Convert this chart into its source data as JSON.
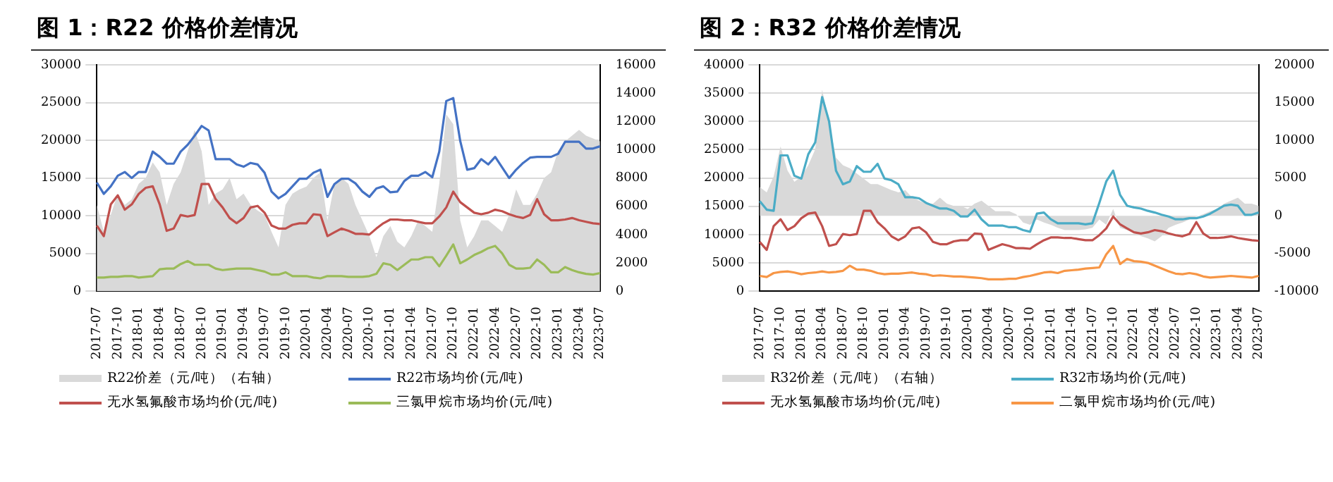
{
  "chart_data": [
    {
      "type": "line",
      "title": "图 1：R22 价格价差情况",
      "marker": "none",
      "grid": "y",
      "legend": "bottom",
      "categories": [
        "2017-07",
        null,
        null,
        "2017-10",
        null,
        null,
        "2018-01",
        null,
        null,
        "2018-04",
        null,
        null,
        "2018-07",
        null,
        null,
        "2018-10",
        null,
        null,
        "2019-01",
        null,
        null,
        "2019-04",
        null,
        null,
        "2019-07",
        null,
        null,
        "2019-10",
        null,
        null,
        "2020-01",
        null,
        null,
        "2020-04",
        null,
        null,
        "2020-07",
        null,
        null,
        "2020-10",
        null,
        null,
        "2021-01",
        null,
        null,
        "2021-04",
        null,
        null,
        "2021-07",
        null,
        null,
        "2021-10",
        null,
        null,
        "2022-01",
        null,
        null,
        "2022-04",
        null,
        null,
        "2022-07",
        null,
        null,
        "2022-10",
        null,
        null,
        "2023-01",
        null,
        null,
        "2023-04",
        null,
        null,
        "2023-07"
      ],
      "ylim": [
        0,
        30000
      ],
      "yticks": [
        0,
        5000,
        10000,
        15000,
        20000,
        25000,
        30000
      ],
      "y2lim": [
        0,
        16000
      ],
      "y2ticks": [
        0,
        2000,
        4000,
        6000,
        8000,
        10000,
        12000,
        14000,
        16000
      ],
      "series": [
        {
          "name": "R22价差（元/吨）（右轴）",
          "type": "area",
          "axis": "y2",
          "color": "#d9d9d9",
          "values": [
            6100,
            4200,
            5400,
            6900,
            6100,
            6500,
            7600,
            8000,
            9100,
            8400,
            6100,
            7600,
            8400,
            9900,
            11400,
            9900,
            6100,
            6900,
            7200,
            8000,
            6500,
            6900,
            6100,
            5700,
            5400,
            4200,
            3100,
            6100,
            6900,
            7200,
            7400,
            8000,
            8400,
            5000,
            7600,
            8000,
            7600,
            6100,
            5000,
            3900,
            2400,
            3900,
            4600,
            3500,
            3100,
            3900,
            5000,
            4600,
            4200,
            7600,
            12500,
            11800,
            5000,
            3100,
            3900,
            5000,
            5000,
            4600,
            4200,
            5400,
            7200,
            6100,
            6100,
            6900,
            8000,
            8400,
            9900,
            10600,
            11000,
            11400,
            11000,
            10800,
            10600
          ]
        },
        {
          "name": "R22市场均价(元/吨)",
          "color": "#4472c4",
          "values": [
            14400,
            12900,
            13900,
            15300,
            15800,
            15000,
            15800,
            15800,
            18500,
            17800,
            16900,
            16900,
            18500,
            19400,
            20600,
            21900,
            21300,
            17500,
            17500,
            17500,
            16800,
            16500,
            17000,
            16800,
            15700,
            13200,
            12300,
            12900,
            13900,
            14900,
            14900,
            15700,
            16100,
            12500,
            14200,
            14900,
            14900,
            14300,
            13200,
            12500,
            13600,
            13900,
            13100,
            13200,
            14600,
            15300,
            15300,
            15800,
            15100,
            18500,
            25200,
            25600,
            19900,
            16100,
            16300,
            17500,
            16800,
            17800,
            16400,
            15000,
            16100,
            17000,
            17700,
            17800,
            17800,
            17800,
            18200,
            19800,
            19800,
            19800,
            18900,
            18900,
            19200
          ]
        },
        {
          "name": "无水氢氟酸市场均价(元/吨)",
          "color": "#c0504d",
          "values": [
            8700,
            7300,
            11500,
            12700,
            10800,
            11500,
            12900,
            13700,
            13900,
            11500,
            8000,
            8300,
            10100,
            9900,
            10100,
            14200,
            14200,
            12200,
            11100,
            9700,
            9000,
            9700,
            11100,
            11300,
            10400,
            8700,
            8300,
            8300,
            8800,
            9000,
            9000,
            10200,
            10100,
            7300,
            7800,
            8300,
            8000,
            7600,
            7600,
            7500,
            8300,
            9000,
            9500,
            9500,
            9400,
            9400,
            9200,
            9000,
            9000,
            9900,
            11100,
            13200,
            11800,
            11100,
            10400,
            10200,
            10400,
            10800,
            10600,
            10200,
            9900,
            9700,
            10100,
            12200,
            10200,
            9400,
            9400,
            9500,
            9700,
            9400,
            9200,
            9000,
            8900
          ]
        },
        {
          "name": "三氯甲烷市场均价(元/吨)",
          "color": "#9bbb59",
          "values": [
            1800,
            1800,
            1900,
            1900,
            2000,
            2000,
            1800,
            1900,
            2000,
            2900,
            3000,
            3000,
            3600,
            4000,
            3500,
            3500,
            3500,
            3000,
            2800,
            2900,
            3000,
            3000,
            3000,
            2800,
            2600,
            2200,
            2200,
            2500,
            2000,
            2000,
            2000,
            1800,
            1700,
            2000,
            2000,
            2000,
            1900,
            1900,
            1900,
            2000,
            2300,
            3700,
            3500,
            2800,
            3500,
            4200,
            4200,
            4500,
            4500,
            3300,
            4700,
            6200,
            3700,
            4200,
            4800,
            5200,
            5700,
            6000,
            5000,
            3500,
            3000,
            3000,
            3100,
            4200,
            3500,
            2500,
            2500,
            3200,
            2800,
            2500,
            2300,
            2200,
            2400
          ]
        }
      ]
    },
    {
      "type": "line",
      "title": "图 2：R32 价格价差情况",
      "marker": "none",
      "grid": "y",
      "legend": "bottom",
      "categories": [
        "2017-07",
        null,
        null,
        "2017-10",
        null,
        null,
        "2018-01",
        null,
        null,
        "2018-04",
        null,
        null,
        "2018-07",
        null,
        null,
        "2018-10",
        null,
        null,
        "2019-01",
        null,
        null,
        "2019-04",
        null,
        null,
        "2019-07",
        null,
        null,
        "2019-10",
        null,
        null,
        "2020-01",
        null,
        null,
        "2020-04",
        null,
        null,
        "2020-07",
        null,
        null,
        "2020-10",
        null,
        null,
        "2021-01",
        null,
        null,
        "2021-04",
        null,
        null,
        "2021-07",
        null,
        null,
        "2021-10",
        null,
        null,
        "2022-01",
        null,
        null,
        "2022-04",
        null,
        null,
        "2022-07",
        null,
        null,
        "2022-10",
        null,
        null,
        "2023-01",
        null,
        null,
        "2023-04",
        null,
        null,
        "2023-07"
      ],
      "ylim": [
        0,
        40000
      ],
      "yticks": [
        0,
        5000,
        10000,
        15000,
        20000,
        25000,
        30000,
        35000,
        40000
      ],
      "y2lim": [
        -10000,
        20000
      ],
      "y2ticks": [
        -10000,
        -5000,
        0,
        5000,
        10000,
        15000,
        20000
      ],
      "series": [
        {
          "name": "R32价差（元/吨）（右轴）",
          "type": "area",
          "axis": "y2",
          "color": "#d9d9d9",
          "values": [
            3800,
            3100,
            5200,
            9200,
            6000,
            4500,
            5200,
            6700,
            8800,
            16700,
            12400,
            7700,
            6700,
            6300,
            5600,
            4900,
            4200,
            4200,
            3800,
            3400,
            3100,
            3400,
            2400,
            2000,
            1600,
            1600,
            2400,
            1600,
            1300,
            1300,
            900,
            1600,
            2000,
            1300,
            600,
            600,
            600,
            200,
            -900,
            -1200,
            -500,
            -900,
            -1200,
            -1600,
            -1900,
            -1900,
            -1900,
            -1800,
            -1600,
            -500,
            -1200,
            900,
            -1600,
            -1900,
            -2300,
            -2700,
            -3000,
            -3400,
            -2700,
            -1600,
            -1200,
            -900,
            -500,
            -100,
            200,
            600,
            900,
            1600,
            2000,
            2400,
            1600,
            1600,
            1300
          ]
        },
        {
          "name": "R32市场均价(元/吨)",
          "color": "#4bacc6",
          "values": [
            15900,
            14400,
            14200,
            24000,
            24000,
            20400,
            19900,
            24200,
            26300,
            34300,
            30000,
            21300,
            18900,
            19400,
            22100,
            21100,
            21100,
            22500,
            19900,
            19600,
            18900,
            16600,
            16600,
            16400,
            15600,
            15100,
            14600,
            14600,
            14200,
            13200,
            13200,
            14400,
            12700,
            11600,
            11600,
            11600,
            11300,
            11300,
            10800,
            10500,
            13700,
            13900,
            12700,
            12000,
            12000,
            12000,
            12000,
            11800,
            12000,
            15600,
            19400,
            21300,
            17000,
            15100,
            14800,
            14600,
            14200,
            13900,
            13500,
            13200,
            12700,
            12700,
            12900,
            12900,
            13200,
            13700,
            14400,
            15100,
            15300,
            15100,
            13500,
            13500,
            13900
          ]
        },
        {
          "name": "无水氢氟酸市场均价(元/吨)",
          "color": "#c0504d",
          "values": [
            8700,
            7300,
            11500,
            12700,
            10800,
            11500,
            12900,
            13700,
            13900,
            11500,
            8000,
            8300,
            10100,
            9900,
            10100,
            14200,
            14200,
            12200,
            11100,
            9700,
            9000,
            9700,
            11100,
            11300,
            10400,
            8700,
            8300,
            8300,
            8800,
            9000,
            9000,
            10200,
            10100,
            7300,
            7800,
            8300,
            8000,
            7600,
            7600,
            7500,
            8300,
            9000,
            9500,
            9500,
            9400,
            9400,
            9200,
            9000,
            9000,
            9900,
            11100,
            13200,
            11800,
            11100,
            10400,
            10200,
            10400,
            10800,
            10600,
            10200,
            9900,
            9700,
            10100,
            12200,
            10200,
            9400,
            9400,
            9500,
            9700,
            9400,
            9200,
            9000,
            8900
          ]
        },
        {
          "name": "二氯甲烷市场均价(元/吨)",
          "color": "#f79646",
          "values": [
            2700,
            2500,
            3200,
            3400,
            3500,
            3300,
            3000,
            3200,
            3300,
            3500,
            3300,
            3400,
            3600,
            4500,
            3800,
            3800,
            3600,
            3200,
            3000,
            3100,
            3100,
            3200,
            3300,
            3100,
            3000,
            2700,
            2800,
            2700,
            2600,
            2600,
            2500,
            2400,
            2300,
            2100,
            2100,
            2100,
            2200,
            2200,
            2500,
            2700,
            3000,
            3300,
            3400,
            3200,
            3600,
            3700,
            3800,
            4000,
            4100,
            4200,
            6500,
            8000,
            4800,
            5700,
            5300,
            5200,
            5000,
            4500,
            4000,
            3500,
            3100,
            3000,
            3200,
            3000,
            2600,
            2400,
            2500,
            2600,
            2700,
            2600,
            2500,
            2400,
            2700
          ]
        }
      ]
    }
  ]
}
